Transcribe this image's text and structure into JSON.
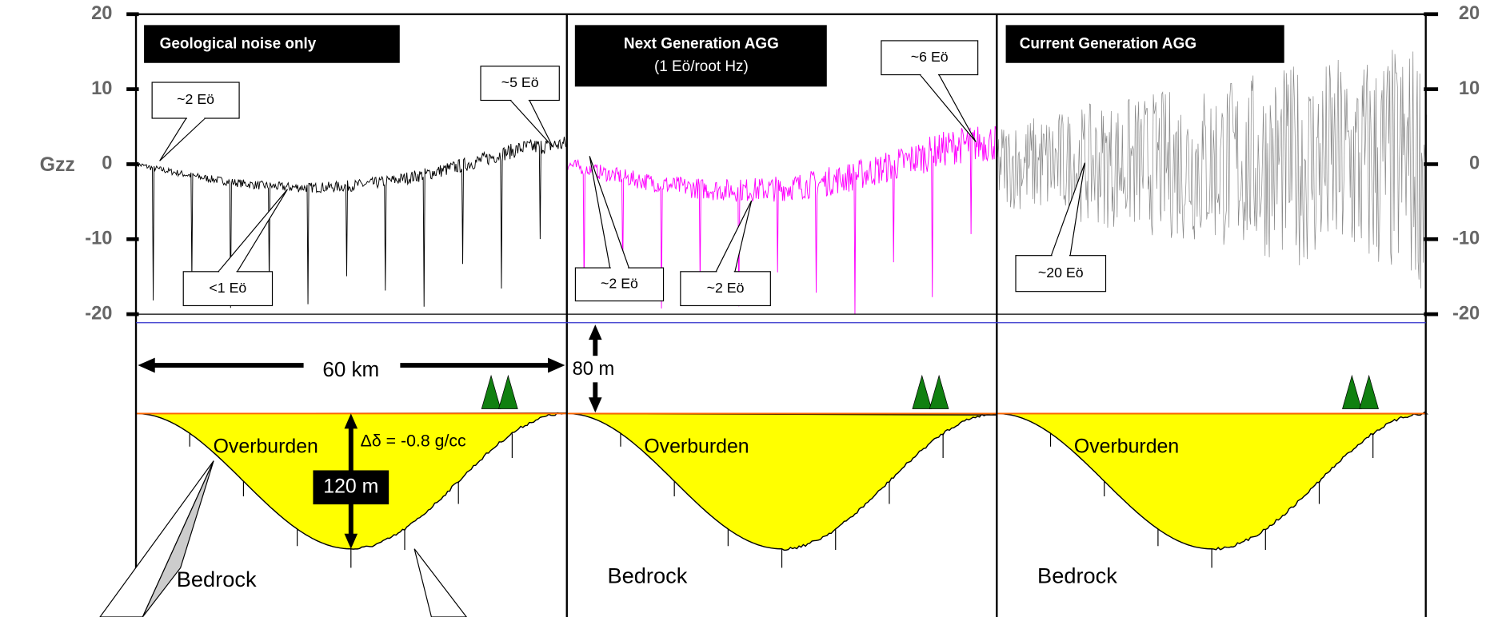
{
  "axis": {
    "label": "Gzz",
    "ylim": [
      -20,
      20
    ],
    "yticks": [
      -20,
      -10,
      0,
      10,
      20
    ]
  },
  "panels": [
    {
      "title": "Geological noise only",
      "callouts": [
        "~2 Eö",
        "<1 Eö",
        "~5 Eö"
      ],
      "overburden": "Overburden",
      "bedrock": "Bedrock"
    },
    {
      "title": "Next Generation AGG",
      "subtitle": "(1 Eö/root Hz)",
      "callouts": [
        "~2 Eö",
        "~2 Eö",
        "~6 Eö"
      ],
      "overburden": "Overburden",
      "bedrock": "Bedrock"
    },
    {
      "title": "Current Generation AGG",
      "callouts": [
        "~20 Eö"
      ],
      "overburden": "Overburden",
      "bedrock": "Bedrock"
    }
  ],
  "section": {
    "distance": "60 km",
    "flight_height": "80 m",
    "depth": "120 m",
    "density_contrast": "Δδ = -0.8 g/cc"
  }
}
